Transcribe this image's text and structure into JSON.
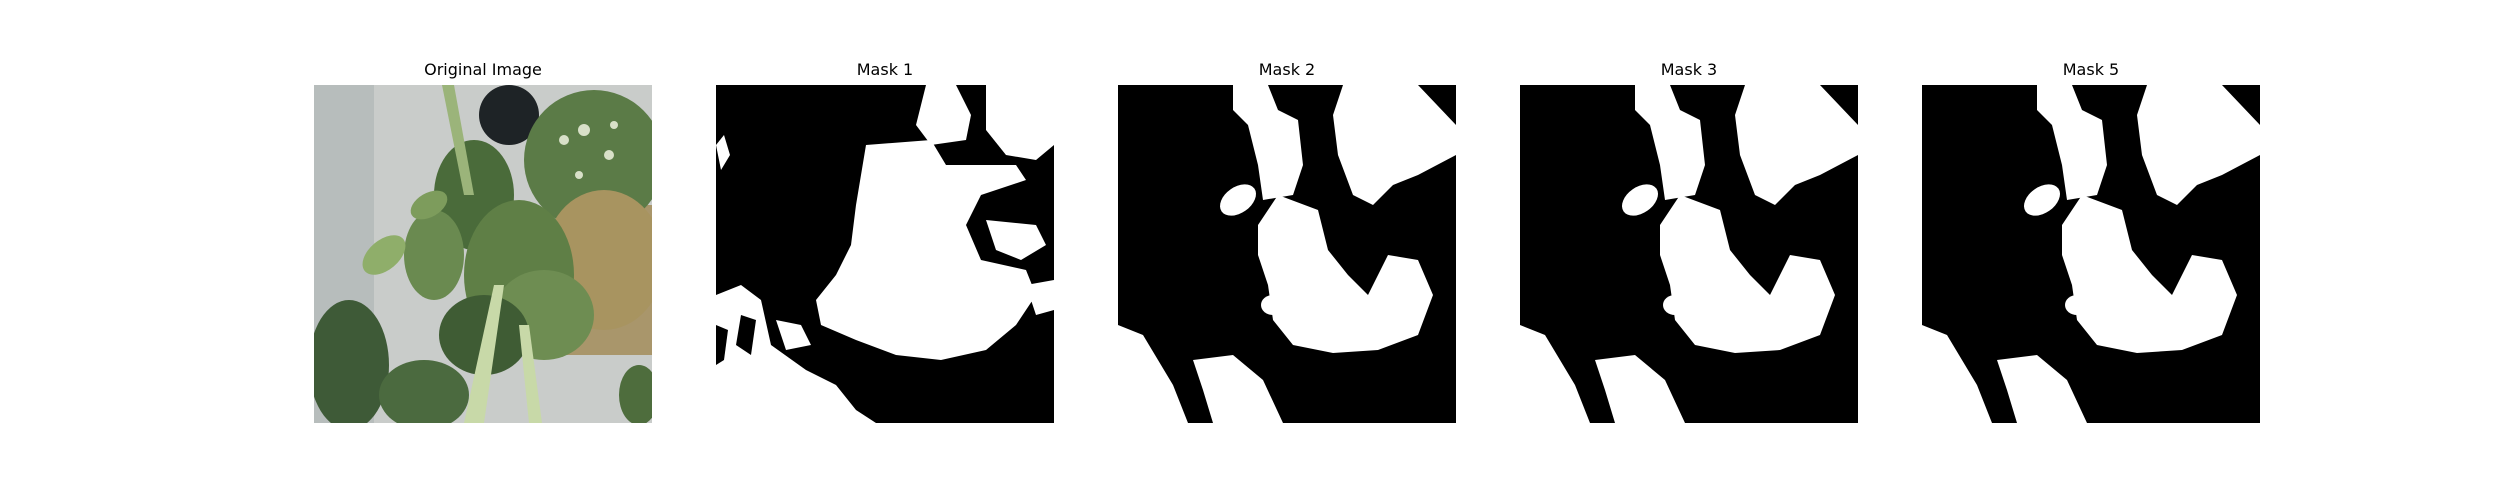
{
  "figure": {
    "panels": [
      {
        "title": "Original Image",
        "kind": "photo"
      },
      {
        "title": "Mask 1",
        "kind": "mask"
      },
      {
        "title": "Mask 2",
        "kind": "mask"
      },
      {
        "title": "Mask 3",
        "kind": "mask"
      },
      {
        "title": "Mask 5",
        "kind": "mask"
      }
    ]
  },
  "colors": {
    "background": "#ffffff",
    "mask_background": "#000000",
    "mask_foreground": "#ffffff",
    "photo_backdrop": "#c9ccca",
    "leaf_dark": "#3f5c34",
    "leaf_mid": "#5f7f46",
    "leaf_light": "#8fae6a",
    "leaf_brown": "#b39a6a",
    "stem": "#c8d9a8"
  }
}
